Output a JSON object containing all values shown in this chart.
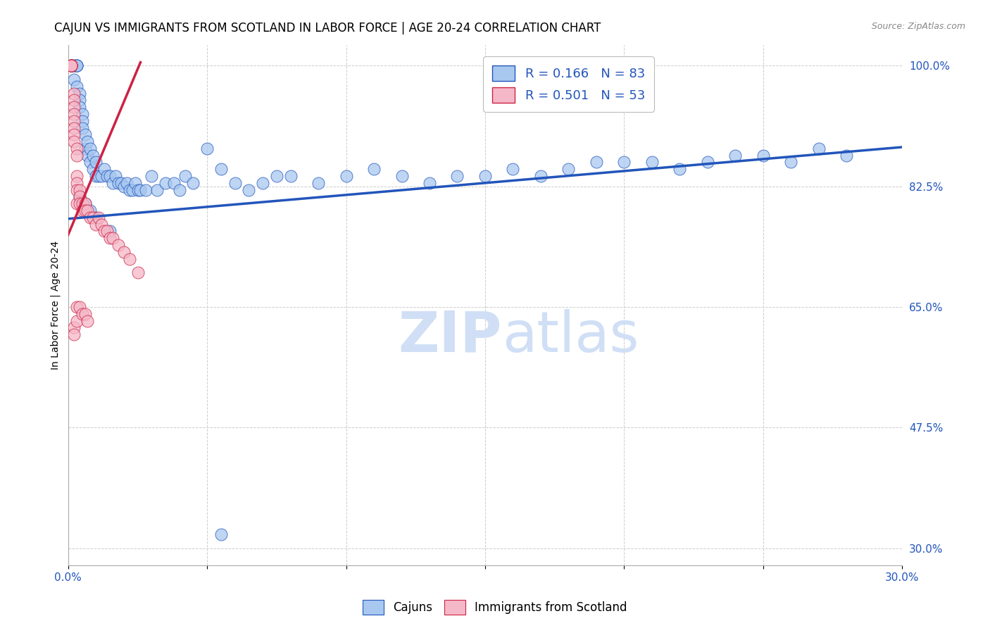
{
  "title": "CAJUN VS IMMIGRANTS FROM SCOTLAND IN LABOR FORCE | AGE 20-24 CORRELATION CHART",
  "source": "Source: ZipAtlas.com",
  "ylabel": "In Labor Force | Age 20-24",
  "xlim": [
    0.0,
    0.3
  ],
  "ylim": [
    0.275,
    1.03
  ],
  "xticks": [
    0.0,
    0.05,
    0.1,
    0.15,
    0.2,
    0.25,
    0.3
  ],
  "xticklabels": [
    "0.0%",
    "",
    "",
    "",
    "",
    "",
    "30.0%"
  ],
  "yticks_right": [
    0.3,
    0.475,
    0.65,
    0.825,
    1.0
  ],
  "yticklabels_right": [
    "30.0%",
    "47.5%",
    "65.0%",
    "82.5%",
    "100.0%"
  ],
  "blue_color": "#A8C8F0",
  "pink_color": "#F5B8C8",
  "line_blue": "#2255BB",
  "line_pink": "#CC2244",
  "watermark_color": "#D0DFF5",
  "title_fontsize": 12,
  "axis_label_fontsize": 10,
  "tick_fontsize": 11,
  "cajun_x": [
    0.001,
    0.001,
    0.001,
    0.002,
    0.002,
    0.002,
    0.003,
    0.003,
    0.003,
    0.003,
    0.004,
    0.004,
    0.004,
    0.005,
    0.005,
    0.005,
    0.006,
    0.006,
    0.007,
    0.007,
    0.008,
    0.008,
    0.009,
    0.009,
    0.01,
    0.01,
    0.011,
    0.012,
    0.013,
    0.014,
    0.015,
    0.016,
    0.017,
    0.018,
    0.019,
    0.02,
    0.021,
    0.022,
    0.023,
    0.024,
    0.025,
    0.026,
    0.028,
    0.03,
    0.032,
    0.035,
    0.038,
    0.04,
    0.042,
    0.045,
    0.05,
    0.055,
    0.06,
    0.065,
    0.07,
    0.075,
    0.08,
    0.09,
    0.1,
    0.11,
    0.12,
    0.13,
    0.14,
    0.15,
    0.16,
    0.17,
    0.18,
    0.19,
    0.2,
    0.21,
    0.22,
    0.23,
    0.24,
    0.25,
    0.26,
    0.27,
    0.28,
    0.004,
    0.006,
    0.008,
    0.01,
    0.015,
    0.055
  ],
  "cajun_y": [
    1.0,
    1.0,
    1.0,
    1.0,
    1.0,
    0.98,
    1.0,
    1.0,
    1.0,
    0.97,
    0.96,
    0.95,
    0.94,
    0.93,
    0.92,
    0.91,
    0.9,
    0.88,
    0.89,
    0.87,
    0.88,
    0.86,
    0.87,
    0.85,
    0.86,
    0.84,
    0.84,
    0.84,
    0.85,
    0.84,
    0.84,
    0.83,
    0.84,
    0.83,
    0.83,
    0.825,
    0.83,
    0.82,
    0.82,
    0.83,
    0.82,
    0.82,
    0.82,
    0.84,
    0.82,
    0.83,
    0.83,
    0.82,
    0.84,
    0.83,
    0.88,
    0.85,
    0.83,
    0.82,
    0.83,
    0.84,
    0.84,
    0.83,
    0.84,
    0.85,
    0.84,
    0.83,
    0.84,
    0.84,
    0.85,
    0.84,
    0.85,
    0.86,
    0.86,
    0.86,
    0.85,
    0.86,
    0.87,
    0.87,
    0.86,
    0.88,
    0.87,
    0.81,
    0.8,
    0.79,
    0.78,
    0.76,
    0.32
  ],
  "scotland_x": [
    0.001,
    0.001,
    0.001,
    0.001,
    0.001,
    0.001,
    0.001,
    0.001,
    0.001,
    0.001,
    0.002,
    0.002,
    0.002,
    0.002,
    0.002,
    0.002,
    0.002,
    0.002,
    0.003,
    0.003,
    0.003,
    0.003,
    0.003,
    0.003,
    0.004,
    0.004,
    0.004,
    0.005,
    0.005,
    0.006,
    0.006,
    0.007,
    0.008,
    0.009,
    0.01,
    0.011,
    0.012,
    0.013,
    0.014,
    0.015,
    0.016,
    0.018,
    0.02,
    0.022,
    0.025,
    0.002,
    0.002,
    0.003,
    0.003,
    0.004,
    0.005,
    0.006,
    0.007
  ],
  "scotland_y": [
    1.0,
    1.0,
    1.0,
    1.0,
    1.0,
    1.0,
    1.0,
    1.0,
    1.0,
    1.0,
    0.96,
    0.95,
    0.94,
    0.93,
    0.92,
    0.91,
    0.9,
    0.89,
    0.88,
    0.87,
    0.84,
    0.83,
    0.82,
    0.8,
    0.82,
    0.81,
    0.8,
    0.8,
    0.79,
    0.8,
    0.79,
    0.79,
    0.78,
    0.78,
    0.77,
    0.78,
    0.77,
    0.76,
    0.76,
    0.75,
    0.75,
    0.74,
    0.73,
    0.72,
    0.7,
    0.62,
    0.61,
    0.65,
    0.63,
    0.65,
    0.64,
    0.64,
    0.63
  ],
  "blue_line_x0": 0.0,
  "blue_line_x1": 0.3,
  "blue_line_y0": 0.778,
  "blue_line_y1": 0.882,
  "pink_line_x0": 0.0,
  "pink_line_x1": 0.026,
  "pink_line_y0": 0.755,
  "pink_line_y1": 1.005
}
